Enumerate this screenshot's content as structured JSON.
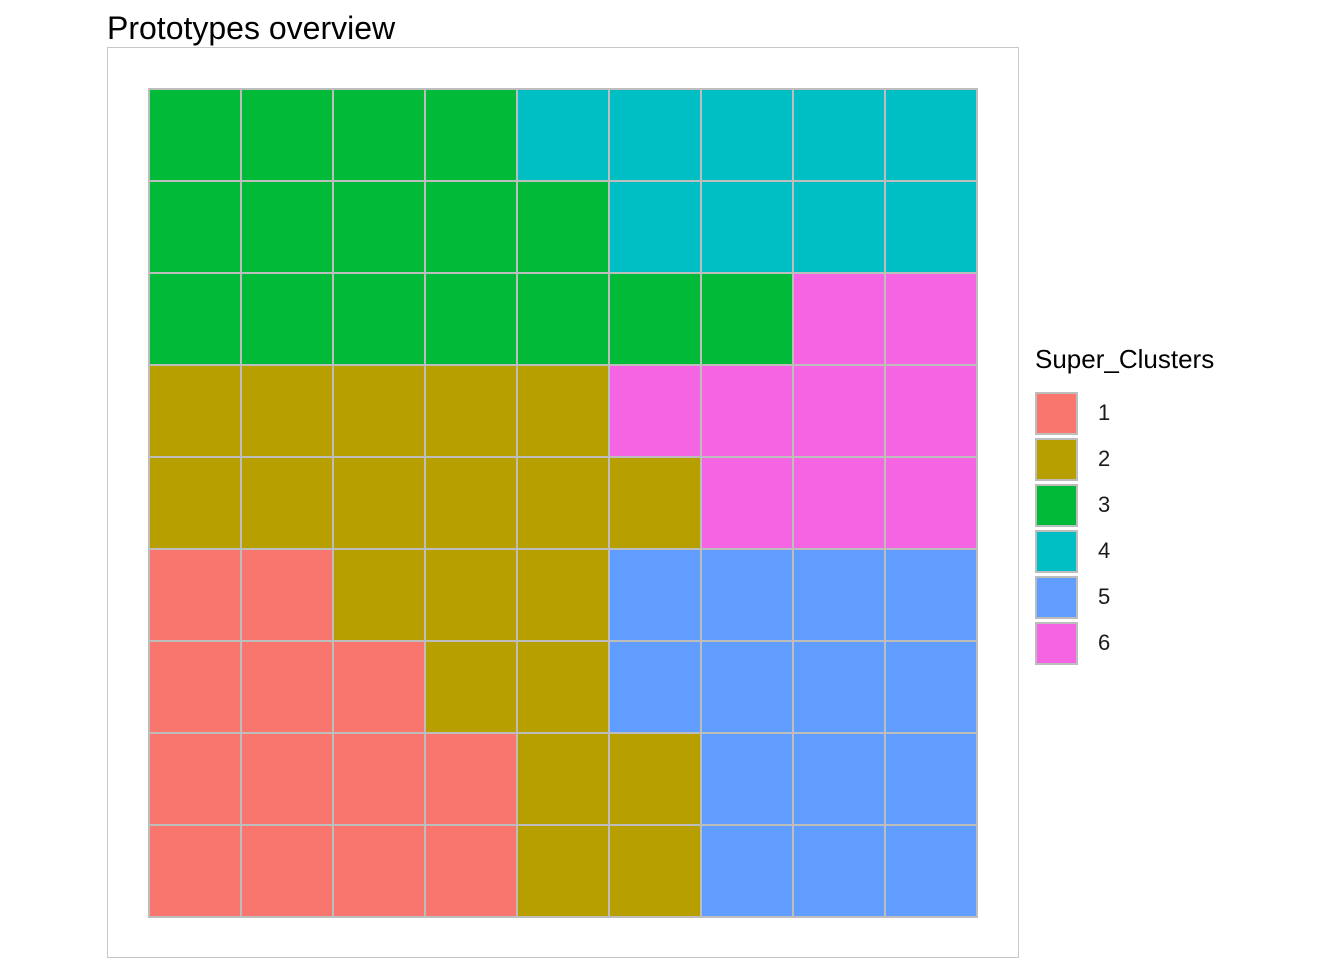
{
  "chart_data": {
    "type": "heatmap",
    "title": "Prototypes overview",
    "xlabel": "",
    "ylabel": "",
    "grid": false,
    "rows": 9,
    "cols": 9,
    "cells": [
      [
        3,
        3,
        3,
        3,
        4,
        4,
        4,
        4,
        4
      ],
      [
        3,
        3,
        3,
        3,
        3,
        4,
        4,
        4,
        4
      ],
      [
        3,
        3,
        3,
        3,
        3,
        3,
        3,
        6,
        6
      ],
      [
        2,
        2,
        2,
        2,
        2,
        6,
        6,
        6,
        6
      ],
      [
        2,
        2,
        2,
        2,
        2,
        2,
        6,
        6,
        6
      ],
      [
        1,
        1,
        2,
        2,
        2,
        5,
        5,
        5,
        5
      ],
      [
        1,
        1,
        1,
        2,
        2,
        5,
        5,
        5,
        5
      ],
      [
        1,
        1,
        1,
        1,
        2,
        2,
        5,
        5,
        5
      ],
      [
        1,
        1,
        1,
        1,
        2,
        2,
        5,
        5,
        5
      ]
    ],
    "legend": {
      "title": "Super_Clusters",
      "position": "right",
      "entries": [
        {
          "label": "1",
          "color": "#F8766D"
        },
        {
          "label": "2",
          "color": "#B79F00"
        },
        {
          "label": "3",
          "color": "#00BA38"
        },
        {
          "label": "4",
          "color": "#00BFC4"
        },
        {
          "label": "5",
          "color": "#619CFF"
        },
        {
          "label": "6",
          "color": "#F564E3"
        }
      ]
    },
    "cell_border_color": "#bdbdbd"
  }
}
